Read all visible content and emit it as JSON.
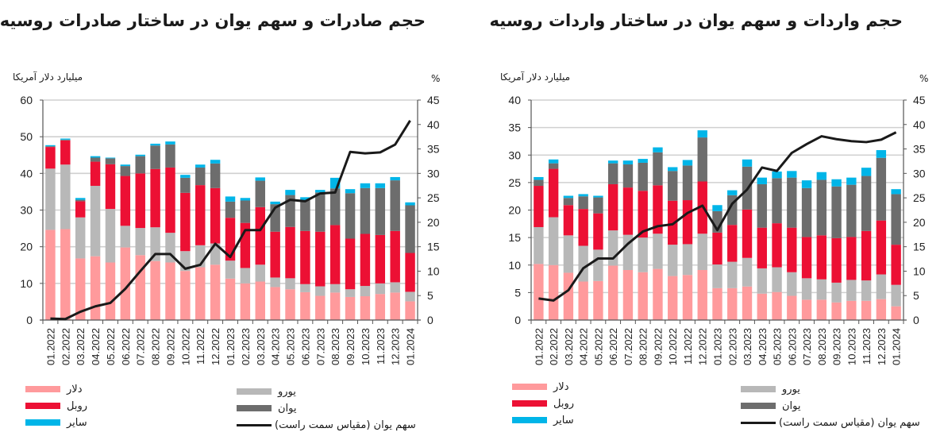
{
  "colors": {
    "dollar": "#ff9a9c",
    "euro": "#b8b8b8",
    "ruble": "#ec1034",
    "yuan": "#6d6d6d",
    "other": "#00b5e8",
    "share_line": "#1a1a1a",
    "grid": "#d0d0d0",
    "axis": "#555555"
  },
  "chart_data": [
    {
      "type": "bar",
      "stacked": true,
      "title": "حجم صادرات و سهم یوان در ساختار صادرات روسیه",
      "ylabel": "میلیارد دلار آمریکا",
      "y2label": "%",
      "ylim": [
        0,
        60
      ],
      "y2lim": [
        0,
        45
      ],
      "yticks": [
        "0",
        "10",
        "20",
        "30",
        "40",
        "50",
        "60"
      ],
      "y2ticks": [
        "0",
        "5",
        "10",
        "15",
        "20",
        "25",
        "30",
        "35",
        "40",
        "45"
      ],
      "grid": true,
      "legend_position": "bottom",
      "categories": [
        "01.2022",
        "02.2022",
        "03.2022",
        "04.2022",
        "05.2022",
        "06.2022",
        "07.2022",
        "08.2022",
        "09.2022",
        "10.2022",
        "11.2022",
        "12.2022",
        "01.2023",
        "02.2023",
        "03.2023",
        "04.2023",
        "05.2023",
        "06.2023",
        "07.2023",
        "08.2023",
        "09.2023",
        "10.2023",
        "11.2023",
        "12.2023",
        "01.2024"
      ],
      "series": [
        {
          "key": "dollar",
          "name": "دلار",
          "values": [
            24.6,
            24.8,
            16.8,
            17.4,
            15.7,
            19.8,
            17.7,
            16.1,
            15.7,
            13.4,
            14.4,
            15.1,
            11.3,
            10.0,
            10.5,
            9.0,
            8.4,
            7.6,
            6.6,
            7.5,
            6.3,
            6.5,
            7.1,
            7.5,
            5.1
          ]
        },
        {
          "key": "euro",
          "name": "یورو",
          "values": [
            16.7,
            17.6,
            11.2,
            19.2,
            14.6,
            5.9,
            7.4,
            9.2,
            8.1,
            5.4,
            6.0,
            5.8,
            4.9,
            4.2,
            4.6,
            2.6,
            3.0,
            2.2,
            2.6,
            2.3,
            2.1,
            2.8,
            2.9,
            2.8,
            2.6
          ]
        },
        {
          "key": "ruble",
          "name": "روبل",
          "values": [
            5.9,
            6.6,
            4.4,
            6.6,
            12.2,
            13.6,
            14.9,
            15.9,
            17.8,
            15.9,
            16.4,
            15.1,
            11.7,
            12.3,
            15.7,
            12.5,
            14.0,
            14.5,
            14.9,
            16.1,
            13.8,
            14.2,
            13.2,
            14.0,
            10.6
          ]
        },
        {
          "key": "yuan",
          "name": "یوان",
          "values": [
            0.2,
            0.2,
            0.4,
            1.1,
            1.6,
            2.7,
            4.7,
            6.4,
            6.3,
            4.1,
            4.8,
            6.7,
            4.4,
            6.1,
            7.2,
            7.5,
            8.7,
            8.4,
            10.7,
            10.0,
            12.4,
            12.5,
            12.8,
            13.8,
            13.0
          ]
        },
        {
          "key": "other",
          "name": "سایر",
          "values": [
            0.3,
            0.3,
            0.5,
            0.4,
            0.2,
            0.4,
            0.4,
            0.5,
            0.8,
            0.8,
            0.8,
            1.0,
            1.4,
            0.7,
            0.9,
            0.7,
            1.4,
            0.8,
            0.7,
            2.9,
            1.1,
            1.3,
            1.3,
            0.9,
            0.8
          ]
        }
      ],
      "line": {
        "name": "سهم یوان (مقیاس سمت راست)",
        "axis": "right",
        "values": [
          0.3,
          0.2,
          1.7,
          2.8,
          3.5,
          6.4,
          10.0,
          13.5,
          13.5,
          10.5,
          11.3,
          15.6,
          12.9,
          18.4,
          18.4,
          23.0,
          24.6,
          24.3,
          25.9,
          26.1,
          34.4,
          34.1,
          34.3,
          35.9,
          40.8
        ]
      }
    },
    {
      "type": "bar",
      "stacked": true,
      "title": "حجم واردات و سهم یوان در ساختار واردات روسیه",
      "ylabel": "میلیارد دلار آمریکا",
      "y2label": "%",
      "ylim": [
        0,
        40
      ],
      "y2lim": [
        0,
        45
      ],
      "yticks": [
        "0",
        "5",
        "10",
        "15",
        "20",
        "25",
        "30",
        "35",
        "40"
      ],
      "y2ticks": [
        "0",
        "5",
        "10",
        "15",
        "20",
        "25",
        "30",
        "35",
        "40",
        "45"
      ],
      "grid": true,
      "legend_position": "bottom",
      "categories": [
        "01.2022",
        "02.2022",
        "03.2022",
        "04.2022",
        "05.2022",
        "06.2022",
        "07.2022",
        "08.2022",
        "09.2022",
        "10.2022",
        "11.2022",
        "12.2022",
        "01.2023",
        "02.2023",
        "03.2023",
        "04.2023",
        "05.2023",
        "06.2023",
        "07.2023",
        "08.2023",
        "09.2023",
        "10.2023",
        "11.2023",
        "12.2023",
        "01.2024"
      ],
      "series": [
        {
          "key": "dollar",
          "name": "دلار",
          "values": [
            10.2,
            10.0,
            8.6,
            7.0,
            7.1,
            9.9,
            9.1,
            8.7,
            9.3,
            8.0,
            8.2,
            9.1,
            5.8,
            5.8,
            6.1,
            4.8,
            5.1,
            4.4,
            3.7,
            3.7,
            3.2,
            3.5,
            3.5,
            3.8,
            2.5
          ]
        },
        {
          "key": "euro",
          "name": "یورو",
          "values": [
            6.7,
            8.7,
            6.8,
            6.5,
            5.7,
            6.4,
            6.4,
            6.3,
            6.4,
            5.7,
            5.6,
            6.6,
            4.3,
            4.8,
            5.2,
            4.6,
            4.5,
            4.3,
            3.9,
            3.7,
            3.6,
            3.8,
            3.7,
            4.5,
            3.9
          ]
        },
        {
          "key": "ruble",
          "name": "روبل",
          "values": [
            7.5,
            8.8,
            5.5,
            6.7,
            6.6,
            8.4,
            8.6,
            8.5,
            8.8,
            8.0,
            8.0,
            9.5,
            5.8,
            6.7,
            8.8,
            7.4,
            8.0,
            8.1,
            7.5,
            8.0,
            8.1,
            7.8,
            9.0,
            9.8,
            7.3
          ]
        },
        {
          "key": "yuan",
          "name": "یوان",
          "values": [
            1.1,
            1.0,
            1.3,
            2.3,
            2.9,
            3.8,
            4.2,
            5.1,
            6.0,
            5.4,
            6.3,
            8.0,
            3.9,
            5.4,
            7.8,
            7.9,
            8.2,
            9.1,
            8.9,
            10.1,
            9.4,
            9.5,
            10.0,
            11.4,
            9.2
          ]
        },
        {
          "key": "other",
          "name": "سایر",
          "values": [
            0.5,
            0.7,
            0.4,
            0.4,
            0.3,
            0.5,
            0.7,
            0.7,
            0.9,
            0.7,
            1.0,
            1.3,
            1.1,
            0.9,
            1.3,
            1.2,
            1.2,
            1.2,
            1.4,
            1.4,
            1.3,
            1.3,
            1.5,
            1.4,
            0.9
          ]
        }
      ],
      "line": {
        "name": "سهم یوان (مقیاس سمت راست)",
        "axis": "right",
        "values": [
          4.4,
          4.0,
          6.1,
          10.6,
          12.6,
          12.6,
          15.6,
          18.1,
          19.2,
          19.6,
          21.9,
          23.4,
          18.4,
          23.8,
          26.7,
          31.2,
          30.5,
          34.2,
          36.0,
          37.6,
          37.0,
          36.6,
          36.4,
          36.9,
          38.4
        ]
      }
    }
  ]
}
